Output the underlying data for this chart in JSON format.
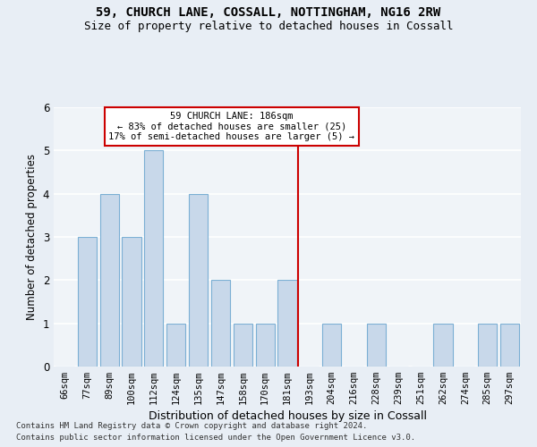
{
  "title1": "59, CHURCH LANE, COSSALL, NOTTINGHAM, NG16 2RW",
  "title2": "Size of property relative to detached houses in Cossall",
  "xlabel": "Distribution of detached houses by size in Cossall",
  "ylabel": "Number of detached properties",
  "categories": [
    "66sqm",
    "77sqm",
    "89sqm",
    "100sqm",
    "112sqm",
    "124sqm",
    "135sqm",
    "147sqm",
    "158sqm",
    "170sqm",
    "181sqm",
    "193sqm",
    "204sqm",
    "216sqm",
    "228sqm",
    "239sqm",
    "251sqm",
    "262sqm",
    "274sqm",
    "285sqm",
    "297sqm"
  ],
  "values": [
    0,
    3,
    4,
    3,
    5,
    1,
    4,
    2,
    1,
    1,
    2,
    0,
    1,
    0,
    1,
    0,
    0,
    1,
    0,
    1,
    1
  ],
  "bar_color": "#c8d8ea",
  "bar_edge_color": "#7bafd4",
  "vline_color": "#cc0000",
  "vline_x": 10.5,
  "annotation_title": "59 CHURCH LANE: 186sqm",
  "annotation_line1": "← 83% of detached houses are smaller (25)",
  "annotation_line2": "17% of semi-detached houses are larger (5) →",
  "annotation_box_color": "#ffffff",
  "annotation_box_edge": "#cc0000",
  "ylim": [
    0,
    6
  ],
  "yticks": [
    0,
    1,
    2,
    3,
    4,
    5,
    6
  ],
  "footnote1": "Contains HM Land Registry data © Crown copyright and database right 2024.",
  "footnote2": "Contains public sector information licensed under the Open Government Licence v3.0.",
  "bg_color": "#e8eef5",
  "plot_bg_color": "#f0f4f8",
  "grid_color": "#ffffff",
  "title1_fontsize": 10,
  "title2_fontsize": 9,
  "axis_label_fontsize": 8.5,
  "tick_fontsize": 7.5,
  "annot_fontsize": 7.5,
  "footnote_fontsize": 6.5
}
